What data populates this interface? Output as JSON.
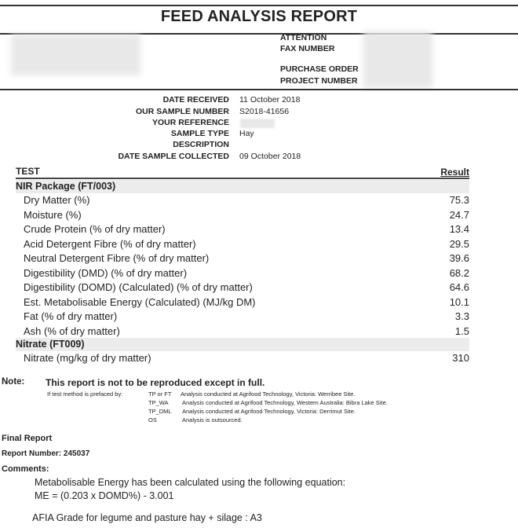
{
  "title": "FEED ANALYSIS REPORT",
  "header_labels": [
    "ATTENTION",
    "FAX NUMBER",
    "PURCHASE ORDER",
    "PROJECT NUMBER"
  ],
  "meta": [
    {
      "label": "DATE RECEIVED",
      "value": "11 October 2018"
    },
    {
      "label": "OUR SAMPLE NUMBER",
      "value": "S2018-41656"
    },
    {
      "label": "YOUR REFERENCE",
      "value": ""
    },
    {
      "label": "SAMPLE TYPE",
      "value": "Hay"
    },
    {
      "label": "DESCRIPTION",
      "value": ""
    },
    {
      "label": "DATE SAMPLE COLLECTED",
      "value": "09 October 2018"
    }
  ],
  "table": {
    "col_test": "TEST",
    "col_result": "Result",
    "sections": [
      {
        "name": "NIR Package  (FT/003)",
        "rows": [
          {
            "test": "Dry Matter (%)",
            "result": "75.3"
          },
          {
            "test": "Moisture (%)",
            "result": "24.7"
          },
          {
            "test": "Crude Protein (% of dry matter)",
            "result": "13.4"
          },
          {
            "test": "Acid Detergent Fibre (% of dry matter)",
            "result": "29.5"
          },
          {
            "test": "Neutral Detergent Fibre (% of dry matter)",
            "result": "39.6"
          },
          {
            "test": "Digestibility (DMD) (% of dry matter)",
            "result": "68.2"
          },
          {
            "test": "Digestibility (DOMD) (Calculated) (% of dry matter)",
            "result": "64.6"
          },
          {
            "test": "Est. Metabolisable Energy (Calculated) (MJ/kg DM)",
            "result": "10.1"
          },
          {
            "test": "Fat (% of dry matter)",
            "result": "3.3"
          },
          {
            "test": "Ash (% of dry matter)",
            "result": "1.5"
          }
        ]
      },
      {
        "name": "Nitrate  (FT009)",
        "rows": [
          {
            "test": "Nitrate (mg/kg of dry matter)",
            "result": "310"
          }
        ]
      }
    ]
  },
  "note": {
    "label": "Note:",
    "text": "This report is not to be reproduced except in full.",
    "prefix_intro": "If test method is prefaced by:",
    "prefixes": [
      {
        "code": "TP or FT",
        "desc": "Analysis conducted at Agrifood Technology, Victoria: Werribee Site."
      },
      {
        "code": "TP_WA",
        "desc": "Analysis conducted at Agrifood Technology, Western Australia: Bibra Lake Site."
      },
      {
        "code": "TP_DML",
        "desc": "Analysis conducted at Agrifood Technology, Victoria: Derrimut Site."
      },
      {
        "code": "OS",
        "desc": "Analysis is outsourced."
      }
    ]
  },
  "final_report": "Final Report",
  "report_number": "Report Number: 245037",
  "comments": {
    "label": "Comments:",
    "line1": "Metabolisable Energy has been calculated using the following equation:",
    "line2": "ME = (0.203 x DOMD%) - 3.001",
    "line3": "AFIA Grade for legume and pasture hay + silage : A3"
  }
}
